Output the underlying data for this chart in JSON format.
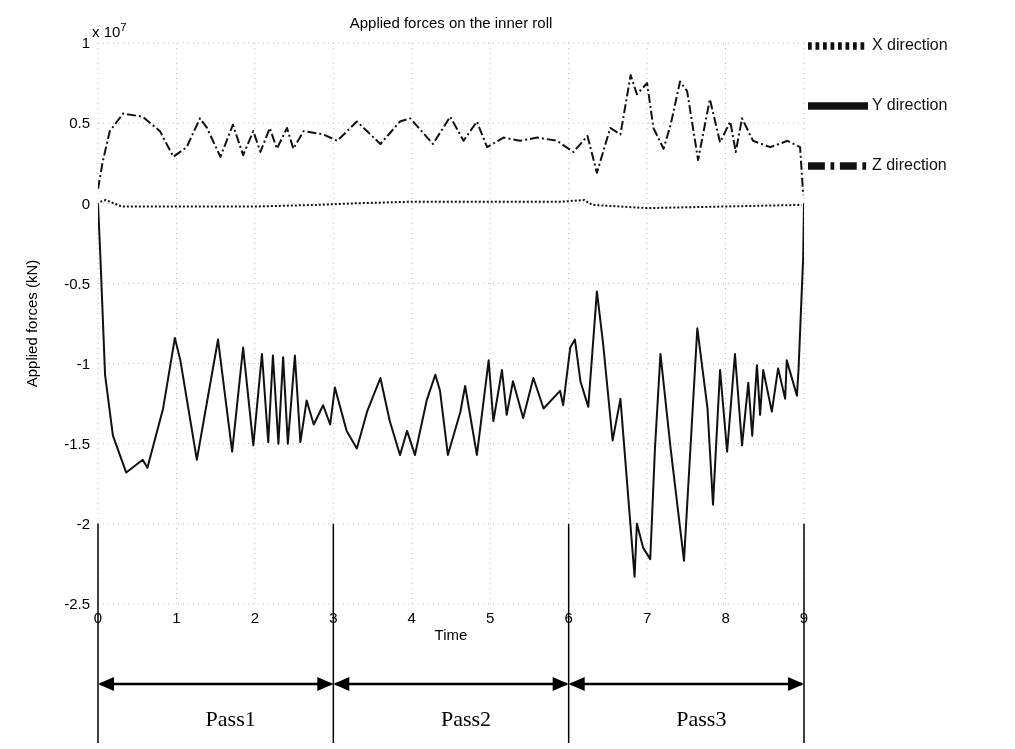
{
  "chart_data": {
    "type": "line",
    "title": "Applied forces on the inner roll",
    "xlabel": "Time",
    "ylabel": "Applied forces (kN)",
    "annotations": [
      "x 10$^{7}$",
      "Pass1",
      "Pass2",
      "Pass3"
    ],
    "xlim": [
      0,
      9
    ],
    "xticks": [
      0,
      1,
      2,
      3,
      4,
      5,
      6,
      7,
      8,
      9
    ],
    "ylim": [
      -2.5,
      1
    ],
    "yticks": [
      -2.5,
      -2,
      -1.5,
      -1,
      -0.5,
      0,
      0.5,
      1
    ],
    "grid": true,
    "legend": "top right",
    "marker": "none",
    "ref_lines": [
      {
        "axis": "x",
        "value": 0,
        "color": "#000000"
      },
      {
        "axis": "x",
        "value": 3,
        "color": "#000000"
      },
      {
        "axis": "x",
        "value": 6,
        "color": "#000000"
      },
      {
        "axis": "x",
        "value": 9,
        "color": "#000000"
      }
    ],
    "series": [
      {
        "name": "X direction",
        "color": "#111111",
        "line_style": "dotted",
        "x": [
          0.03,
          0.1,
          0.3,
          1,
          2,
          2.8,
          3.3,
          4,
          5,
          5.9,
          6.2,
          6.3,
          7,
          8,
          8.97
        ],
        "values": [
          0.01,
          0.02,
          -0.02,
          -0.02,
          -0.02,
          -0.01,
          0,
          0.01,
          0.01,
          0.01,
          0.02,
          -0.01,
          -0.03,
          -0.02,
          -0.01
        ]
      },
      {
        "name": "Y direction",
        "color": "#111111",
        "line_style": "solid",
        "x": [
          0,
          0.03,
          0.09,
          0.19,
          0.36,
          0.57,
          0.63,
          0.83,
          0.98,
          1.05,
          1.26,
          1.53,
          1.71,
          1.85,
          1.98,
          2.09,
          2.17,
          2.23,
          2.3,
          2.36,
          2.42,
          2.51,
          2.58,
          2.66,
          2.75,
          2.87,
          2.96,
          3.02,
          3.17,
          3.3,
          3.43,
          3.6,
          3.72,
          3.85,
          3.94,
          4.04,
          4.19,
          4.3,
          4.36,
          4.46,
          4.62,
          4.68,
          4.83,
          4.98,
          5.04,
          5.15,
          5.21,
          5.29,
          5.42,
          5.55,
          5.68,
          5.89,
          5.93,
          6.02,
          6.08,
          6.15,
          6.25,
          6.36,
          6.44,
          6.56,
          6.66,
          6.84,
          6.87,
          6.95,
          7.04,
          7.1,
          7.17,
          7.3,
          7.47,
          7.64,
          7.77,
          7.84,
          7.93,
          8.02,
          8.12,
          8.21,
          8.29,
          8.34,
          8.4,
          8.44,
          8.48,
          8.59,
          8.67,
          8.76,
          8.78,
          8.91,
          8.93,
          8.99,
          9
        ],
        "values": [
          0,
          -0.33,
          -1.07,
          -1.45,
          -1.68,
          -1.6,
          -1.65,
          -1.28,
          -0.84,
          -0.98,
          -1.6,
          -0.85,
          -1.55,
          -0.9,
          -1.51,
          -0.94,
          -1.49,
          -0.95,
          -1.5,
          -0.96,
          -1.5,
          -0.95,
          -1.49,
          -1.23,
          -1.38,
          -1.26,
          -1.38,
          -1.15,
          -1.42,
          -1.53,
          -1.3,
          -1.09,
          -1.36,
          -1.57,
          -1.42,
          -1.57,
          -1.23,
          -1.07,
          -1.17,
          -1.57,
          -1.3,
          -1.14,
          -1.57,
          -0.98,
          -1.36,
          -1.04,
          -1.32,
          -1.11,
          -1.34,
          -1.09,
          -1.28,
          -1.17,
          -1.26,
          -0.9,
          -0.85,
          -1.11,
          -1.27,
          -0.55,
          -0.88,
          -1.48,
          -1.22,
          -2.33,
          -2.0,
          -2.15,
          -2.22,
          -1.53,
          -0.94,
          -1.53,
          -2.23,
          -0.78,
          -1.28,
          -1.88,
          -1.04,
          -1.55,
          -0.94,
          -1.51,
          -1.12,
          -1.45,
          -1.01,
          -1.32,
          -1.04,
          -1.3,
          -1.03,
          -1.22,
          -0.98,
          -1.2,
          -1.04,
          -0.33,
          0
        ]
      },
      {
        "name": "Z direction",
        "color": "#111111",
        "line_style": "dashed",
        "x": [
          0,
          0.06,
          0.15,
          0.32,
          0.57,
          0.79,
          0.96,
          1.13,
          1.3,
          1.39,
          1.56,
          1.72,
          1.85,
          1.98,
          2.07,
          2.19,
          2.28,
          2.41,
          2.49,
          2.62,
          2.87,
          3.05,
          3.3,
          3.6,
          3.85,
          3.98,
          4.27,
          4.49,
          4.66,
          4.83,
          4.96,
          5.17,
          5.38,
          5.6,
          5.85,
          6.06,
          6.24,
          6.36,
          6.53,
          6.66,
          6.79,
          6.87,
          7,
          7.08,
          7.21,
          7.3,
          7.42,
          7.51,
          7.65,
          7.8,
          7.93,
          8.06,
          8.13,
          8.21,
          8.35,
          8.57,
          8.79,
          8.95,
          8.99
        ],
        "values": [
          0.09,
          0.26,
          0.45,
          0.56,
          0.54,
          0.45,
          0.29,
          0.35,
          0.53,
          0.47,
          0.29,
          0.49,
          0.3,
          0.45,
          0.32,
          0.47,
          0.34,
          0.47,
          0.34,
          0.45,
          0.43,
          0.39,
          0.51,
          0.37,
          0.51,
          0.53,
          0.37,
          0.54,
          0.39,
          0.51,
          0.35,
          0.41,
          0.39,
          0.41,
          0.39,
          0.32,
          0.42,
          0.19,
          0.47,
          0.43,
          0.8,
          0.68,
          0.75,
          0.47,
          0.34,
          0.49,
          0.76,
          0.7,
          0.27,
          0.65,
          0.38,
          0.51,
          0.32,
          0.53,
          0.39,
          0.35,
          0.39,
          0.35,
          0.05
        ]
      }
    ]
  }
}
